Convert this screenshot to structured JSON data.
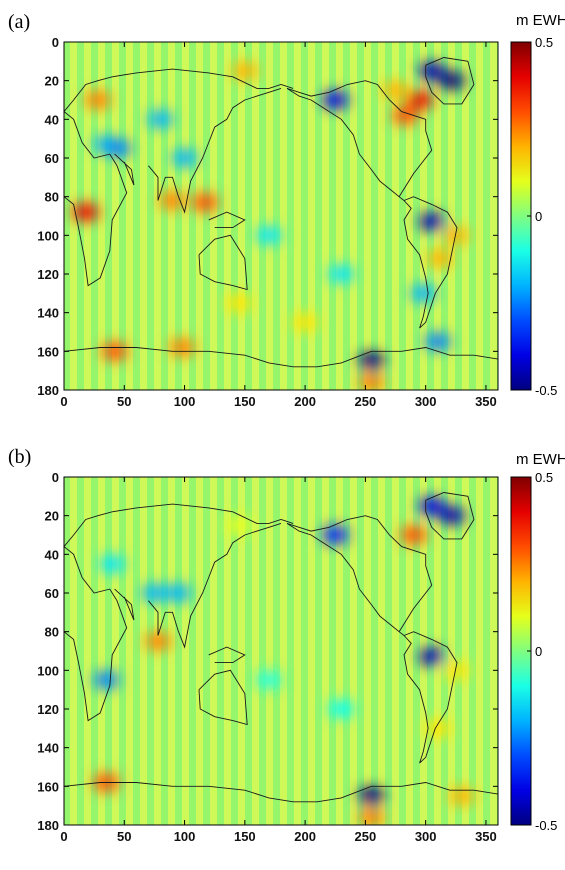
{
  "chart_data": [
    {
      "type": "heatmap",
      "panel_label": "(a)",
      "colorbar_label": "m EWH",
      "colorbar_ticks": [
        "0.5",
        "0",
        "-0.5"
      ],
      "colorbar_range": [
        -0.5,
        0.5
      ],
      "colormap": "jet",
      "xlim": [
        0,
        360
      ],
      "ylim": [
        0,
        180
      ],
      "xticks": [
        0,
        50,
        100,
        150,
        200,
        250,
        300,
        350
      ],
      "yticks": [
        0,
        20,
        40,
        60,
        80,
        100,
        120,
        140,
        160,
        180
      ],
      "y_reversed": true,
      "overlay": "coastlines",
      "features": [
        {
          "lon": 305,
          "lat": 15,
          "value": -0.45
        },
        {
          "lon": 322,
          "lat": 20,
          "value": -0.5
        },
        {
          "lon": 295,
          "lat": 30,
          "value": 0.4
        },
        {
          "lon": 283,
          "lat": 38,
          "value": 0.3
        },
        {
          "lon": 225,
          "lat": 30,
          "value": -0.4
        },
        {
          "lon": 255,
          "lat": 165,
          "value": -0.5
        },
        {
          "lon": 255,
          "lat": 176,
          "value": 0.25
        },
        {
          "lon": 305,
          "lat": 93,
          "value": -0.45
        },
        {
          "lon": 298,
          "lat": 130,
          "value": -0.2
        },
        {
          "lon": 310,
          "lat": 155,
          "value": -0.25
        },
        {
          "lon": 42,
          "lat": 160,
          "value": 0.3
        },
        {
          "lon": 98,
          "lat": 158,
          "value": 0.25
        },
        {
          "lon": 18,
          "lat": 88,
          "value": 0.4
        },
        {
          "lon": 28,
          "lat": 30,
          "value": 0.25
        },
        {
          "lon": 35,
          "lat": 53,
          "value": -0.2
        },
        {
          "lon": 45,
          "lat": 55,
          "value": -0.25
        },
        {
          "lon": 80,
          "lat": 40,
          "value": -0.2
        },
        {
          "lon": 90,
          "lat": 82,
          "value": 0.25
        },
        {
          "lon": 117,
          "lat": 83,
          "value": 0.3
        },
        {
          "lon": 100,
          "lat": 60,
          "value": -0.2
        },
        {
          "lon": 150,
          "lat": 15,
          "value": 0.2
        },
        {
          "lon": 325,
          "lat": 100,
          "value": 0.2
        },
        {
          "lon": 312,
          "lat": 112,
          "value": 0.2
        },
        {
          "lon": 275,
          "lat": 25,
          "value": 0.2
        },
        {
          "lon": 145,
          "lat": 135,
          "value": 0.15
        },
        {
          "lon": 200,
          "lat": 145,
          "value": 0.15
        },
        {
          "lon": 230,
          "lat": 120,
          "value": -0.15
        },
        {
          "lon": 170,
          "lat": 100,
          "value": -0.15
        }
      ]
    },
    {
      "type": "heatmap",
      "panel_label": "(b)",
      "colorbar_label": "m EWH",
      "colorbar_ticks": [
        "0.5",
        "0",
        "-0.5"
      ],
      "colorbar_range": [
        -0.5,
        0.5
      ],
      "colormap": "jet",
      "xlim": [
        0,
        360
      ],
      "ylim": [
        0,
        180
      ],
      "xticks": [
        0,
        50,
        100,
        150,
        200,
        250,
        300,
        350
      ],
      "yticks": [
        0,
        20,
        40,
        60,
        80,
        100,
        120,
        140,
        160,
        180
      ],
      "y_reversed": true,
      "overlay": "coastlines",
      "features": [
        {
          "lon": 305,
          "lat": 15,
          "value": -0.4
        },
        {
          "lon": 322,
          "lat": 20,
          "value": -0.45
        },
        {
          "lon": 290,
          "lat": 30,
          "value": 0.3
        },
        {
          "lon": 225,
          "lat": 30,
          "value": -0.35
        },
        {
          "lon": 255,
          "lat": 165,
          "value": -0.5
        },
        {
          "lon": 255,
          "lat": 176,
          "value": 0.25
        },
        {
          "lon": 305,
          "lat": 93,
          "value": -0.45
        },
        {
          "lon": 35,
          "lat": 158,
          "value": 0.3
        },
        {
          "lon": 35,
          "lat": 105,
          "value": -0.25
        },
        {
          "lon": 78,
          "lat": 85,
          "value": 0.25
        },
        {
          "lon": 75,
          "lat": 60,
          "value": -0.2
        },
        {
          "lon": 95,
          "lat": 60,
          "value": -0.2
        },
        {
          "lon": 40,
          "lat": 45,
          "value": -0.15
        },
        {
          "lon": 325,
          "lat": 100,
          "value": 0.15
        },
        {
          "lon": 330,
          "lat": 165,
          "value": 0.2
        },
        {
          "lon": 310,
          "lat": 130,
          "value": 0.15
        },
        {
          "lon": 145,
          "lat": 25,
          "value": 0.1
        },
        {
          "lon": 170,
          "lat": 105,
          "value": -0.1
        },
        {
          "lon": 230,
          "lat": 120,
          "value": -0.12
        }
      ]
    }
  ]
}
